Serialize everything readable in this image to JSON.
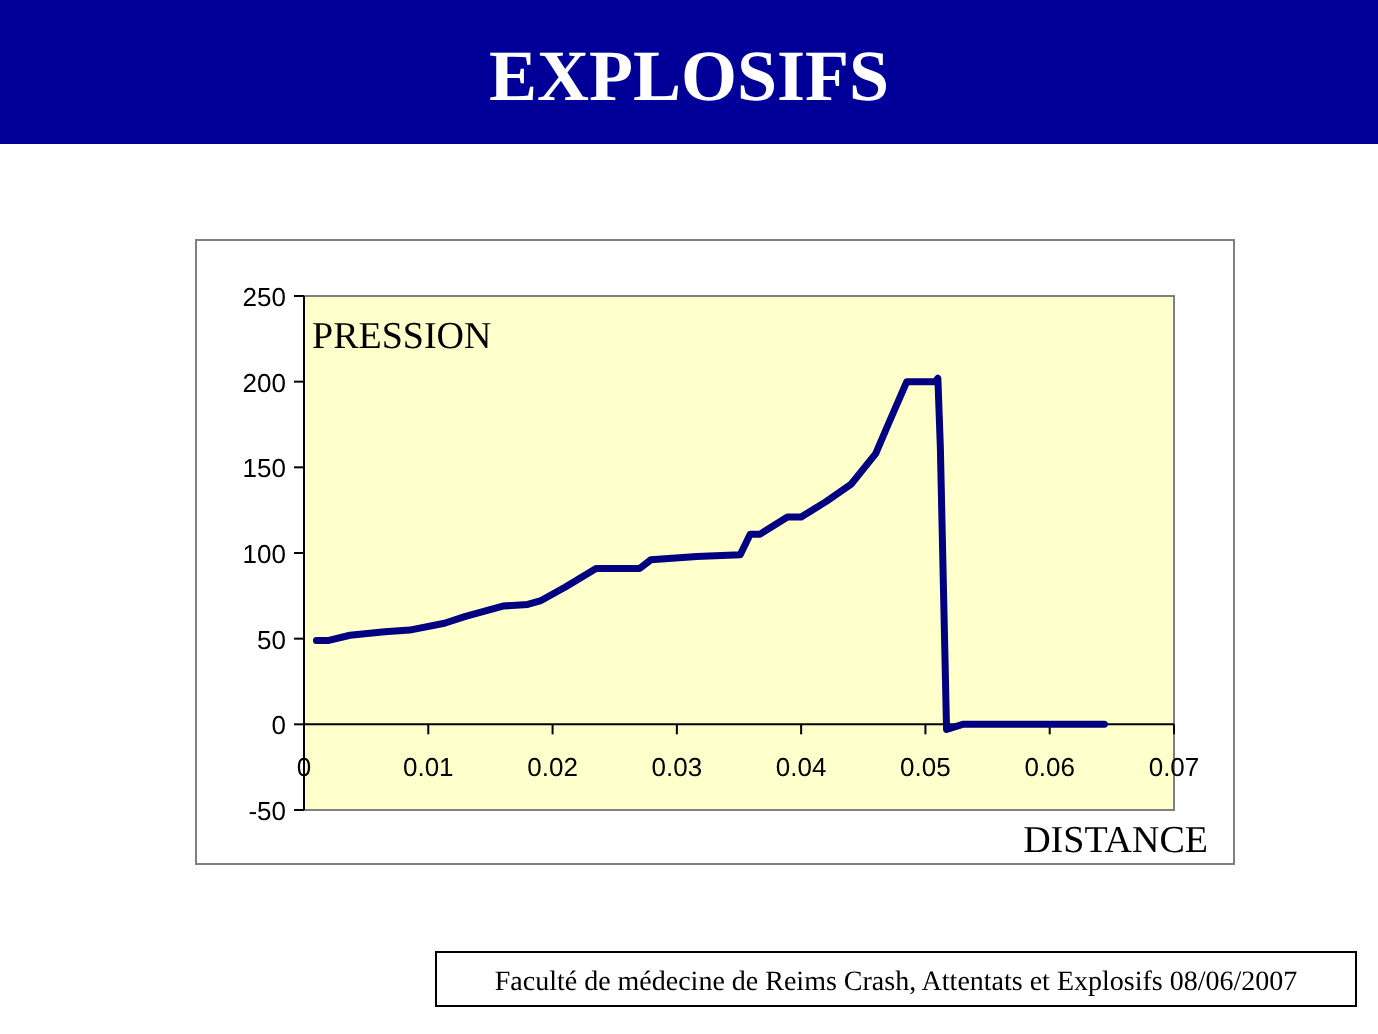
{
  "chart_data": {
    "type": "line",
    "title": "EXPLOSIFS",
    "xlabel": "DISTANCE",
    "ylabel": "PRESSION",
    "annotations": [
      "Faculté de médecine de Reims Crash, Attentats et Explosifs  08/06/2007"
    ],
    "series": [
      {
        "color": "#000080",
        "x": [
          0.001,
          0.002,
          0.0037,
          0.0065,
          0.0085,
          0.0113,
          0.013,
          0.016,
          0.018,
          0.019,
          0.021,
          0.0235,
          0.027,
          0.0279,
          0.0316,
          0.0351,
          0.0359,
          0.0367,
          0.0389,
          0.04,
          0.042,
          0.044,
          0.046,
          0.047,
          0.0485,
          0.0508,
          0.051,
          0.0512,
          0.0517,
          0.053,
          0.0644
        ],
        "values": [
          49,
          49,
          52,
          54,
          55,
          59,
          63,
          69,
          70,
          72,
          80,
          91,
          91,
          96,
          98,
          99,
          111,
          111,
          121,
          121,
          130,
          140,
          158,
          175,
          200,
          200,
          202,
          162,
          -3,
          0,
          0
        ]
      }
    ],
    "xlim": [
      0,
      0.07
    ],
    "ylim": [
      -50,
      250
    ],
    "xticks": [
      0,
      0.01,
      0.02,
      0.03,
      0.04,
      0.05,
      0.06,
      0.07
    ],
    "yticks": [
      -50,
      0,
      50,
      100,
      150,
      200,
      250
    ],
    "marker": "none",
    "line_style": "solid"
  }
}
